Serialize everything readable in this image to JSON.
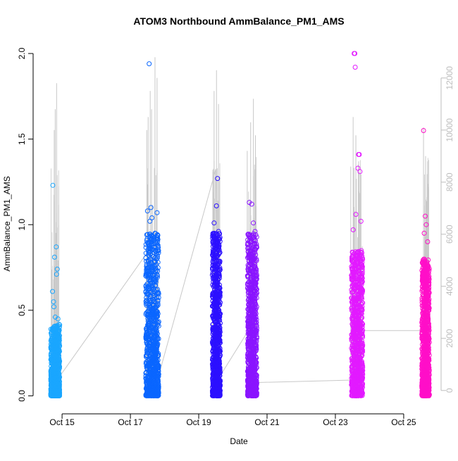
{
  "chart_data": {
    "type": "scatter",
    "title": "ATOM3 Northbound AmmBalance_PM1_AMS",
    "xlabel": "Date",
    "ylabel": "AmmBalance_PM1_AMS",
    "x_ticks": [
      "Oct 15",
      "Oct 17",
      "Oct 19",
      "Oct 21",
      "Oct 23",
      "Oct 25"
    ],
    "y_ticks": [
      "0.0",
      "0.5",
      "1.0",
      "1.5",
      "2.0"
    ],
    "y2_ticks": [
      "0",
      "2000",
      "4000",
      "6000",
      "8000",
      "10000",
      "12000"
    ],
    "xlim_days": [
      14.4,
      25.95
    ],
    "ylim": [
      -0.06,
      2.07
    ],
    "y2lim": [
      -600,
      13400
    ],
    "grid": false,
    "legend": "none",
    "colors": {
      "line": "#c8c8c8",
      "axis": "#000000",
      "right_axis": "#bdbdbd"
    },
    "series": [
      {
        "range": [
          "Oct 14 17:00",
          "Oct 14 22:00"
        ],
        "color": "#1aa6ff",
        "max": 1.23,
        "outliers": [
          {
            "t": 14.73,
            "v": 1.23
          },
          {
            "t": 14.83,
            "v": 0.87
          },
          {
            "t": 14.78,
            "v": 0.81
          },
          {
            "t": 14.86,
            "v": 0.74
          },
          {
            "t": 14.84,
            "v": 0.71
          },
          {
            "t": 14.72,
            "v": 0.61
          },
          {
            "t": 14.75,
            "v": 0.55
          },
          {
            "t": 14.76,
            "v": 0.52
          },
          {
            "t": 14.8,
            "v": 0.46
          },
          {
            "t": 14.88,
            "v": 0.45
          }
        ]
      },
      {
        "range": [
          "Oct 17 10:00",
          "Oct 17 20:00"
        ],
        "color": "#0a66ff",
        "max": 1.94,
        "outliers": [
          {
            "t": 17.55,
            "v": 1.94
          },
          {
            "t": 17.6,
            "v": 1.1
          },
          {
            "t": 17.78,
            "v": 1.07
          },
          {
            "t": 17.5,
            "v": 1.08
          },
          {
            "t": 17.63,
            "v": 1.04
          },
          {
            "t": 17.57,
            "v": 1.02
          },
          {
            "t": 17.72,
            "v": 0.95
          }
        ]
      },
      {
        "range": [
          "Oct 19 08:00",
          "Oct 19 15:00"
        ],
        "color": "#2c10ff",
        "max": 1.27,
        "outliers": [
          {
            "t": 19.55,
            "v": 1.27
          },
          {
            "t": 19.52,
            "v": 1.11
          },
          {
            "t": 19.45,
            "v": 1.01
          },
          {
            "t": 19.58,
            "v": 0.96
          }
        ]
      },
      {
        "range": [
          "Oct 20 11:00",
          "Oct 20 19:00"
        ],
        "color": "#8a14ff",
        "max": 1.13,
        "outliers": [
          {
            "t": 20.48,
            "v": 1.13
          },
          {
            "t": 20.55,
            "v": 1.12
          },
          {
            "t": 20.6,
            "v": 1.01
          },
          {
            "t": 20.65,
            "v": 0.96
          }
        ]
      },
      {
        "range": [
          "Oct 23 10:00",
          "Oct 23 20:00"
        ],
        "color": "#e21aff",
        "max": 2.0,
        "outliers": [
          {
            "t": 23.55,
            "v": 2.0
          },
          {
            "t": 23.57,
            "v": 2.0
          },
          {
            "t": 23.58,
            "v": 1.92
          },
          {
            "t": 23.68,
            "v": 1.41
          },
          {
            "t": 23.7,
            "v": 1.41
          },
          {
            "t": 23.66,
            "v": 1.33
          },
          {
            "t": 23.72,
            "v": 1.31
          },
          {
            "t": 23.6,
            "v": 1.06
          },
          {
            "t": 23.75,
            "v": 1.02
          },
          {
            "t": 23.52,
            "v": 0.97
          }
        ]
      },
      {
        "range": [
          "Oct 25 14:00",
          "Oct 25 20:00"
        ],
        "color": "#ff0fc8",
        "max": 1.55,
        "outliers": [
          {
            "t": 25.58,
            "v": 1.55
          },
          {
            "t": 25.63,
            "v": 1.05
          },
          {
            "t": 25.66,
            "v": 1.0
          },
          {
            "t": 25.6,
            "v": 0.95
          },
          {
            "t": 25.7,
            "v": 0.9
          }
        ]
      }
    ],
    "secondary_line_baseline": [
      {
        "t": 14.8,
        "v2": 300
      },
      {
        "t": 17.55,
        "v2": 5400
      },
      {
        "t": 17.75,
        "v2": 200
      },
      {
        "t": 19.5,
        "v2": 8500
      },
      {
        "t": 19.55,
        "v2": 400
      },
      {
        "t": 20.5,
        "v2": 2400
      },
      {
        "t": 20.55,
        "v2": 300
      },
      {
        "t": 23.5,
        "v2": 400
      },
      {
        "t": 23.75,
        "v2": 2300
      },
      {
        "t": 25.6,
        "v2": 2300
      }
    ],
    "secondary_line_spikes": [
      {
        "t": 14.77,
        "v2": 10000
      },
      {
        "t": 14.8,
        "v2": 10800
      },
      {
        "t": 14.84,
        "v2": 11800
      },
      {
        "t": 17.48,
        "v2": 10000
      },
      {
        "t": 17.52,
        "v2": 10500
      },
      {
        "t": 17.58,
        "v2": 11500
      },
      {
        "t": 17.62,
        "v2": 10800
      },
      {
        "t": 17.72,
        "v2": 12800
      },
      {
        "t": 17.78,
        "v2": 12000
      },
      {
        "t": 19.45,
        "v2": 11500
      },
      {
        "t": 19.52,
        "v2": 12300
      },
      {
        "t": 19.58,
        "v2": 11000
      },
      {
        "t": 20.42,
        "v2": 9200
      },
      {
        "t": 20.52,
        "v2": 10300
      },
      {
        "t": 20.6,
        "v2": 11200
      },
      {
        "t": 20.66,
        "v2": 9800
      },
      {
        "t": 23.45,
        "v2": 8600
      },
      {
        "t": 23.52,
        "v2": 10500
      },
      {
        "t": 23.6,
        "v2": 9800
      },
      {
        "t": 23.68,
        "v2": 8800
      },
      {
        "t": 23.75,
        "v2": 8300
      },
      {
        "t": 25.58,
        "v2": 10100
      },
      {
        "t": 25.64,
        "v2": 9000
      },
      {
        "t": 25.7,
        "v2": 8800
      }
    ]
  }
}
